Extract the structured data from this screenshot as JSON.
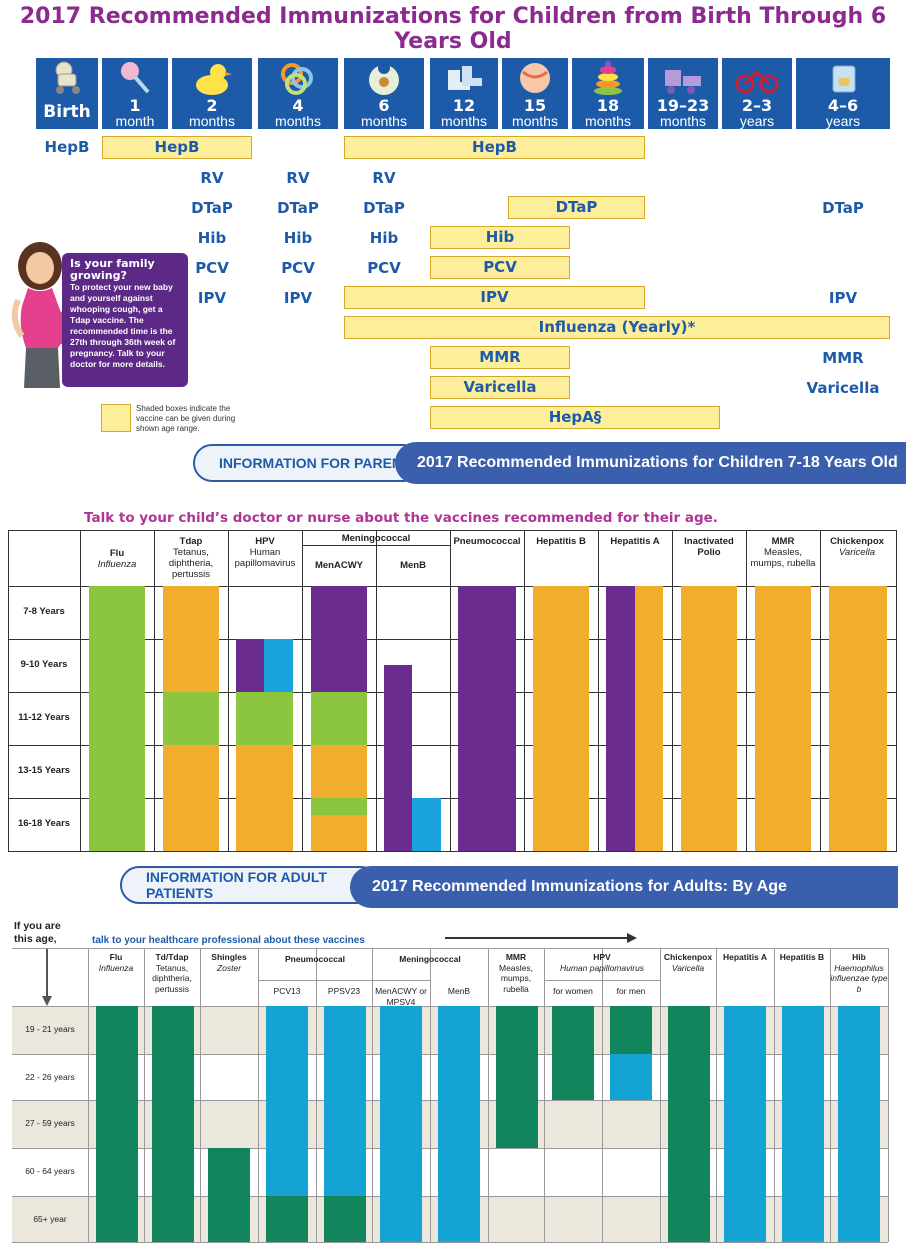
{
  "children_0_6": {
    "title": "2017 Recommended Immunizations for Children from Birth Through 6 Years Old",
    "ages": [
      {
        "num": "Birth",
        "unit": "",
        "icon": "stroller-icon"
      },
      {
        "num": "1",
        "unit": "month",
        "icon": "rattle-icon"
      },
      {
        "num": "2",
        "unit": "months",
        "icon": "rubber-duck-icon"
      },
      {
        "num": "4",
        "unit": "months",
        "icon": "teething-rings-icon"
      },
      {
        "num": "6",
        "unit": "months",
        "icon": "bib-icon"
      },
      {
        "num": "12",
        "unit": "months",
        "icon": "baby-shoes-icon"
      },
      {
        "num": "15",
        "unit": "months",
        "icon": "ball-icon"
      },
      {
        "num": "18",
        "unit": "months",
        "icon": "stacking-rings-icon"
      },
      {
        "num": "19–23",
        "unit": "months",
        "icon": "toy-train-icon"
      },
      {
        "num": "2–3",
        "unit": "years",
        "icon": "tricycle-icon"
      },
      {
        "num": "4–6",
        "unit": "years",
        "icon": "backpack-icon"
      }
    ],
    "vaccines": {
      "hepb_birth": "HepB",
      "hepb_box1": "HepB",
      "hepb_box2": "HepB",
      "rv": "RV",
      "dtap": "DTaP",
      "dtap_box": "DTaP",
      "hib": "Hib",
      "hib_box": "Hib",
      "pcv": "PCV",
      "pcv_box": "PCV",
      "ipv": "IPV",
      "ipv_box": "IPV",
      "influenza_box": "Influenza (Yearly)*",
      "mmr_box": "MMR",
      "mmr": "MMR",
      "varicella_box": "Varicella",
      "varicella": "Varicella",
      "hepa_box": "HepA§"
    },
    "family_box": {
      "heading": "Is your family growing?",
      "body": "To protect your new baby and yourself against whooping cough, get a Tdap vaccine. The recommended time is the 27th through 36th week of pregnancy. Talk to your doctor for more details."
    },
    "legend": "Shaded boxes indicate the vaccine can be given during shown age range.",
    "banner_pill": "INFORMATION FOR PARENTS",
    "banner_next": "2017 Recommended Immunizations for Children 7-18 Years Old"
  },
  "children_7_18": {
    "note": "Talk to your child’s doctor or nurse about the vaccines recommended for their age.",
    "columns": [
      {
        "name": "Flu",
        "sub": "Influenza",
        "italic": true
      },
      {
        "name": "Tdap",
        "sub": "Tetanus, diphtheria, pertussis",
        "italic": false
      },
      {
        "name": "HPV",
        "sub": "Human papillomavirus",
        "italic": false
      },
      {
        "name": "MenACWY",
        "sub": "",
        "italic": false
      },
      {
        "name": "MenB",
        "sub": "",
        "italic": false
      },
      {
        "name": "Pneumococcal",
        "sub": "",
        "italic": false
      },
      {
        "name": "Hepatitis B",
        "sub": "",
        "italic": false
      },
      {
        "name": "Hepatitis A",
        "sub": "",
        "italic": false
      },
      {
        "name": "Inactivated Polio",
        "sub": "",
        "italic": false
      },
      {
        "name": "MMR",
        "sub": "Measles, mumps, rubella",
        "italic": false
      },
      {
        "name": "Chickenpox",
        "sub": "Varicella",
        "italic": true
      }
    ],
    "group_header": "Meningococcal",
    "rows": [
      "7-8 Years",
      "9-10 Years",
      "11-12 Years",
      "13-15 Years",
      "16-18 Years"
    ],
    "colors": {
      "green": "#8cc63f",
      "orange": "#f0ad2e",
      "purple": "#6a2d8f",
      "blue": "#1aa3dd"
    }
  },
  "adults": {
    "banner_pill": "INFORMATION FOR ADULT PATIENTS",
    "banner_text": "2017 Recommended Immunizations for Adults:",
    "banner_bold": "By Age",
    "if_label": "If you are this age,",
    "talk_label": "talk to your healthcare professional about these vaccines",
    "columns": [
      {
        "name": "Flu",
        "sub": "Influenza"
      },
      {
        "name": "Td/Tdap",
        "sub": "Tetanus, diphtheria, pertussis"
      },
      {
        "name": "Shingles",
        "sub": "Zoster"
      },
      {
        "name": "PCV13",
        "sub": ""
      },
      {
        "name": "PPSV23",
        "sub": ""
      },
      {
        "name": "MenACWY or MPSV4",
        "sub": ""
      },
      {
        "name": "MenB",
        "sub": ""
      },
      {
        "name": "MMR",
        "sub": "Measles, mumps, rubella"
      },
      {
        "name": "for women",
        "sub": ""
      },
      {
        "name": "for men",
        "sub": ""
      },
      {
        "name": "Chickenpox",
        "sub": "Varicella"
      },
      {
        "name": "Hepatitis A",
        "sub": ""
      },
      {
        "name": "Hepatitis B",
        "sub": ""
      },
      {
        "name": "Hib",
        "sub": "Haemophilus influenzae type b"
      }
    ],
    "groups": {
      "pneumococcal": "Pneumococcal",
      "meningococcal": "Meningococcal",
      "hpv": "HPV",
      "hpv_sub": "Human papillomavirus"
    },
    "rows": [
      "19 - 21 years",
      "22 - 26 years",
      "27 - 59 years",
      "60 - 64 years",
      "65+ year"
    ],
    "colors": {
      "green": "#12855c",
      "blue": "#15a3d4",
      "band": "#ebe7dc"
    }
  }
}
